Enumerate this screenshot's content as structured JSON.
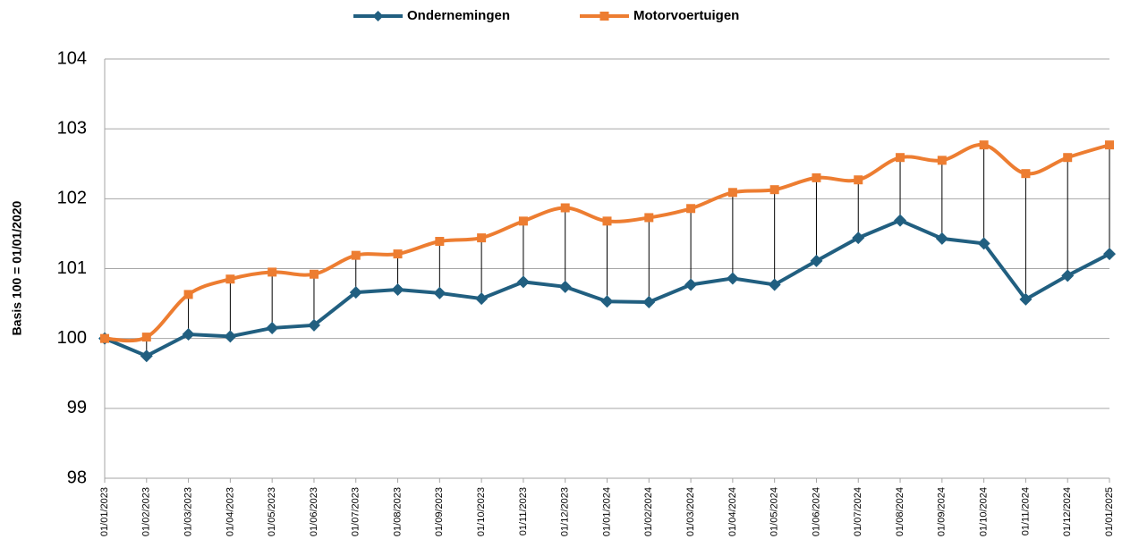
{
  "chart_data": {
    "type": "line",
    "y_label": "Basis 100 = 01/01/2020",
    "categories": [
      "01/01/2023",
      "01/02/2023",
      "01/03/2023",
      "01/04/2023",
      "01/05/2023",
      "01/06/2023",
      "01/07/2023",
      "01/08/2023",
      "01/09/2023",
      "01/10/2023",
      "01/11/2023",
      "01/12/2023",
      "01/01/2024",
      "01/02/2024",
      "01/03/2024",
      "01/04/2024",
      "01/05/2024",
      "01/06/2024",
      "01/07/2024",
      "01/08/2024",
      "01/09/2024",
      "01/10/2024",
      "01/11/2024",
      "01/12/2024",
      "01/01/2025"
    ],
    "series": [
      {
        "name": "Ondernemingen",
        "color": "#215f80",
        "marker": "diamond",
        "smooth": false,
        "values": [
          100.0,
          99.75,
          100.06,
          100.03,
          100.15,
          100.19,
          100.66,
          100.7,
          100.65,
          100.57,
          100.81,
          100.74,
          100.53,
          100.52,
          100.77,
          100.86,
          100.77,
          101.11,
          101.44,
          101.69,
          101.43,
          101.36,
          100.56,
          100.9,
          101.21
        ]
      },
      {
        "name": "Motorvoertuigen",
        "color": "#ed7d31",
        "marker": "square",
        "smooth": true,
        "values": [
          100.0,
          100.02,
          100.63,
          100.85,
          100.95,
          100.92,
          101.19,
          101.21,
          101.39,
          101.44,
          101.68,
          101.87,
          101.68,
          101.73,
          101.86,
          102.09,
          102.13,
          102.3,
          102.27,
          102.59,
          102.55,
          102.77,
          102.36,
          102.59,
          102.77
        ]
      }
    ],
    "ylim": [
      98,
      104
    ],
    "yticks": [
      98,
      99,
      100,
      101,
      102,
      103,
      104
    ],
    "grid": true,
    "high_low_lines": true,
    "legend": "top"
  }
}
